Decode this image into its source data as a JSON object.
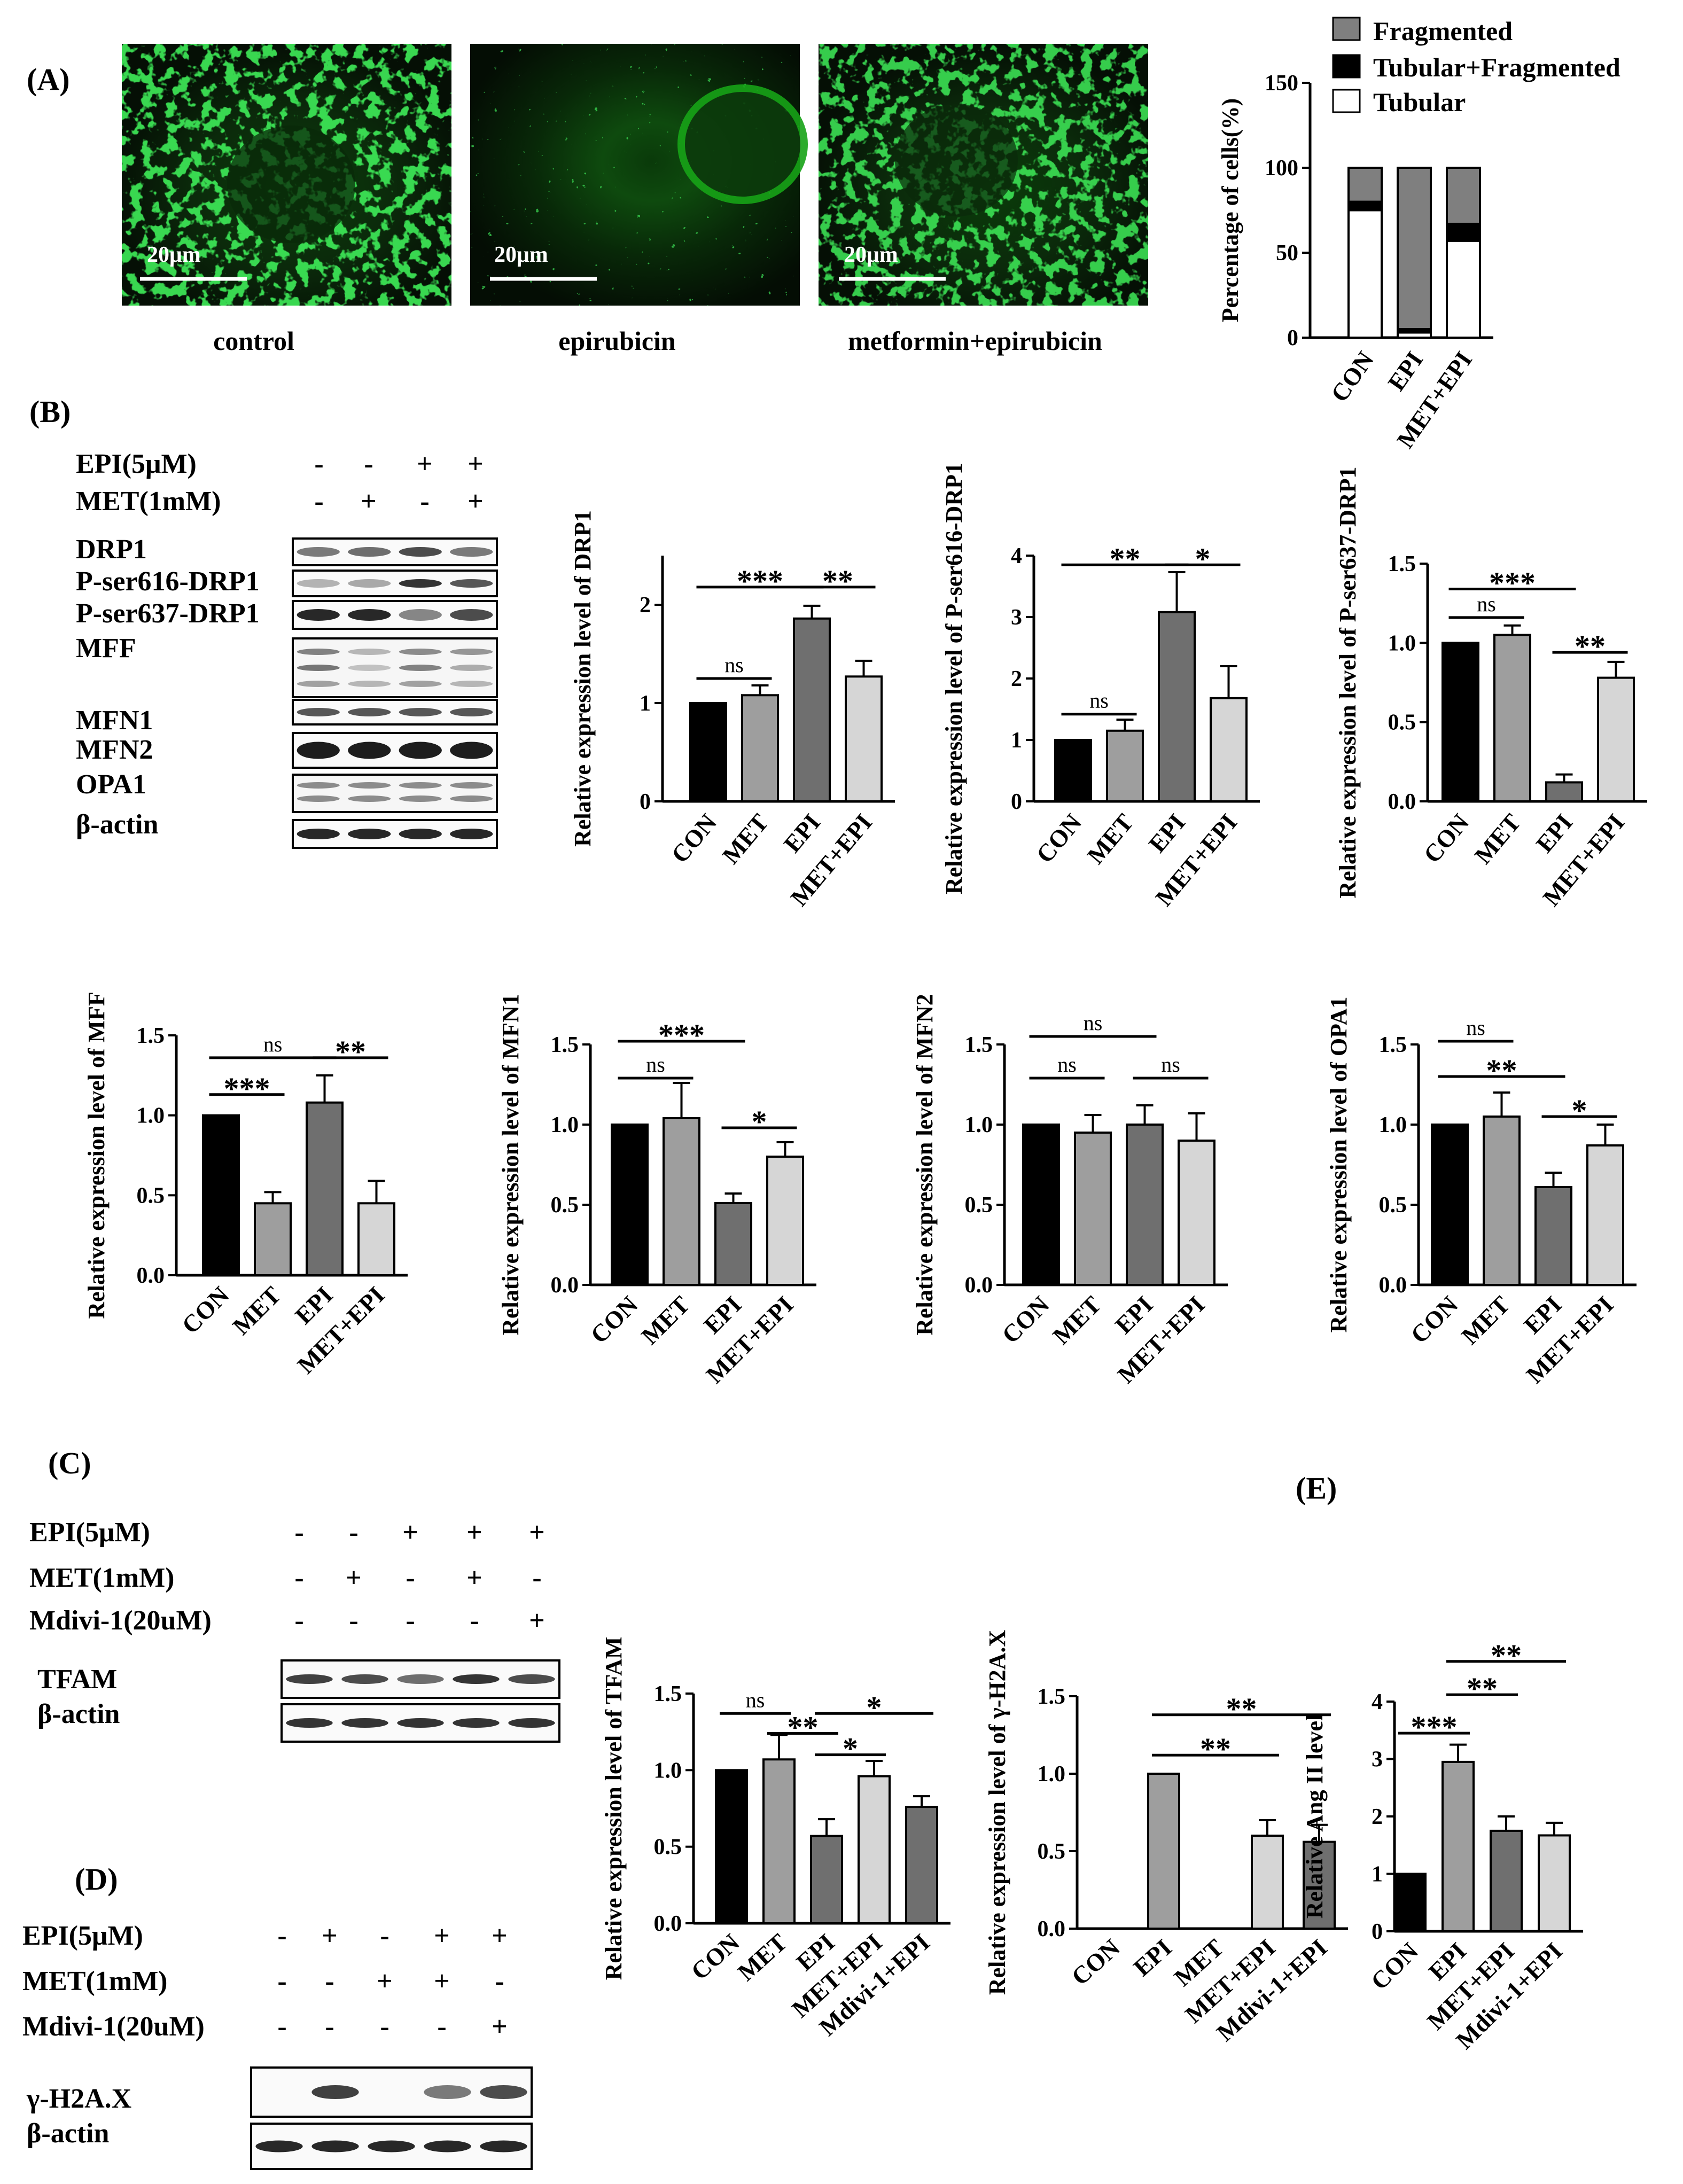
{
  "panels": {
    "A": "(A)",
    "B": "(B)",
    "C": "(C)",
    "D": "(D)",
    "E": "(E)"
  },
  "micrographs": {
    "scale_bar": "20μm",
    "captions": [
      "control",
      "epirubicin",
      "metformin+epirubicin"
    ]
  },
  "western_B": {
    "conditions": [
      {
        "label": "EPI(5μM)",
        "signs": [
          "-",
          "-",
          "+",
          "+"
        ]
      },
      {
        "label": "MET(1mM)",
        "signs": [
          "-",
          "+",
          "-",
          "+"
        ]
      }
    ],
    "proteins": [
      "DRP1",
      "P-ser616-DRP1",
      "P-ser637-DRP1",
      "MFF",
      "MFN1",
      "MFN2",
      "OPA1",
      "β-actin"
    ]
  },
  "western_C": {
    "conditions": [
      {
        "label": "EPI(5μM)",
        "signs": [
          "-",
          "-",
          "+",
          "+",
          "+"
        ]
      },
      {
        "label": "MET(1mM)",
        "signs": [
          "-",
          "+",
          "-",
          "+",
          "-"
        ]
      },
      {
        "label": "Mdivi-1(20uM)",
        "signs": [
          "-",
          "-",
          "-",
          "-",
          "+"
        ]
      }
    ],
    "proteins": [
      "TFAM",
      "β-actin"
    ]
  },
  "western_D": {
    "conditions": [
      {
        "label": "EPI(5μM)",
        "signs": [
          "-",
          "+",
          "-",
          "+",
          "+"
        ]
      },
      {
        "label": "MET(1mM)",
        "signs": [
          "-",
          "-",
          "+",
          "+",
          "-"
        ]
      },
      {
        "label": "Mdivi-1(20uM)",
        "signs": [
          "-",
          "-",
          "-",
          "-",
          "+"
        ]
      }
    ],
    "proteins": [
      "γ-H2A.X",
      "β-actin"
    ]
  },
  "chart_data": [
    {
      "id": "A_stack",
      "type": "bar",
      "stacked": true,
      "categories": [
        "CON",
        "EPI",
        "MET+EPI"
      ],
      "ylabel": "Percentage of cells(%)",
      "ylim": [
        0,
        150
      ],
      "yticks": [
        "0",
        "50",
        "100",
        "150"
      ],
      "series": [
        {
          "name": "Tubular",
          "color": "#ffffff",
          "values": [
            75,
            3,
            57
          ]
        },
        {
          "name": "Tubular+Fragmented",
          "color": "#000000",
          "values": [
            5,
            2,
            10
          ]
        },
        {
          "name": "Fragmented",
          "color": "#7f7f7f",
          "values": [
            20,
            95,
            33
          ]
        }
      ]
    },
    {
      "id": "B_drp1",
      "type": "bar",
      "categories": [
        "CON",
        "MET",
        "EPI",
        "MET+EPI"
      ],
      "values": [
        1.0,
        1.08,
        1.86,
        1.27
      ],
      "errors": [
        0,
        0.1,
        0.13,
        0.16
      ],
      "ylabel": "Relative expression level of DRP1",
      "ylim": [
        0,
        2.5
      ],
      "yticks": [
        "0",
        "1",
        "2"
      ],
      "colors": [
        "#000000",
        "#9e9e9e",
        "#6f6f6f",
        "#d6d6d6"
      ],
      "sig": [
        {
          "text": "ns",
          "from": 0,
          "to": 1,
          "level": 1.25
        },
        {
          "text": "***",
          "from": 0,
          "to": 2,
          "level": 2.18
        },
        {
          "text": "**",
          "from": 2,
          "to": 3,
          "level": 2.18
        }
      ]
    },
    {
      "id": "B_p616",
      "type": "bar",
      "categories": [
        "CON",
        "MET",
        "EPI",
        "MET+EPI"
      ],
      "values": [
        1.0,
        1.15,
        3.08,
        1.68
      ],
      "errors": [
        0,
        0.18,
        0.65,
        0.52
      ],
      "ylabel": "Relative expression level of P-ser616-DRP1",
      "ylim": [
        0,
        4
      ],
      "yticks": [
        "0",
        "1",
        "2",
        "3",
        "4"
      ],
      "colors": [
        "#000000",
        "#9e9e9e",
        "#6f6f6f",
        "#d6d6d6"
      ],
      "sig": [
        {
          "text": "ns",
          "from": 0,
          "to": 1,
          "level": 1.42
        },
        {
          "text": "**",
          "from": 0,
          "to": 2,
          "level": 3.85
        },
        {
          "text": "*",
          "from": 2,
          "to": 3,
          "level": 3.85
        }
      ]
    },
    {
      "id": "B_p637",
      "type": "bar",
      "categories": [
        "CON",
        "MET",
        "EPI",
        "MET+EPI"
      ],
      "values": [
        1.0,
        1.05,
        0.12,
        0.78
      ],
      "errors": [
        0,
        0.06,
        0.05,
        0.1
      ],
      "ylabel": "Relative expression level of P-ser637-DRP1",
      "ylim": [
        0,
        1.5
      ],
      "yticks": [
        "0.0",
        "0.5",
        "1.0",
        "1.5"
      ],
      "colors": [
        "#000000",
        "#9e9e9e",
        "#6f6f6f",
        "#d6d6d6"
      ],
      "sig": [
        {
          "text": "ns",
          "from": 0,
          "to": 1,
          "level": 1.16
        },
        {
          "text": "***",
          "from": 0,
          "to": 2,
          "level": 1.34
        },
        {
          "text": "**",
          "from": 2,
          "to": 3,
          "level": 0.94
        }
      ]
    },
    {
      "id": "B_mff",
      "type": "bar",
      "categories": [
        "CON",
        "MET",
        "EPI",
        "MET+EPI"
      ],
      "values": [
        1.0,
        0.45,
        1.08,
        0.45
      ],
      "errors": [
        0,
        0.07,
        0.17,
        0.14
      ],
      "ylabel": "Relative expression level of MFF",
      "ylim": [
        0,
        1.5
      ],
      "yticks": [
        "0.0",
        "0.5",
        "1.0",
        "1.5"
      ],
      "colors": [
        "#000000",
        "#9e9e9e",
        "#6f6f6f",
        "#d6d6d6"
      ],
      "sig": [
        {
          "text": "***",
          "from": 0,
          "to": 1,
          "level": 1.13
        },
        {
          "text": "ns",
          "from": 0,
          "to": 2,
          "level": 1.36
        },
        {
          "text": "**",
          "from": 2,
          "to": 3,
          "level": 1.36
        }
      ]
    },
    {
      "id": "B_mfn1",
      "type": "bar",
      "categories": [
        "CON",
        "MET",
        "EPI",
        "MET+EPI"
      ],
      "values": [
        1.0,
        1.04,
        0.51,
        0.8
      ],
      "errors": [
        0,
        0.22,
        0.06,
        0.09
      ],
      "ylabel": "Relative expression level of MFN1",
      "ylim": [
        0,
        1.5
      ],
      "yticks": [
        "0.0",
        "0.5",
        "1.0",
        "1.5"
      ],
      "colors": [
        "#000000",
        "#9e9e9e",
        "#6f6f6f",
        "#d6d6d6"
      ],
      "sig": [
        {
          "text": "ns",
          "from": 0,
          "to": 1,
          "level": 1.29
        },
        {
          "text": "***",
          "from": 0,
          "to": 2,
          "level": 1.52
        },
        {
          "text": "*",
          "from": 2,
          "to": 3,
          "level": 0.98
        }
      ]
    },
    {
      "id": "B_mfn2",
      "type": "bar",
      "categories": [
        "CON",
        "MET",
        "EPI",
        "MET+EPI"
      ],
      "values": [
        1.0,
        0.95,
        1.0,
        0.9
      ],
      "errors": [
        0,
        0.11,
        0.12,
        0.17
      ],
      "ylabel": "Relative expression level of MFN2",
      "ylim": [
        0,
        1.5
      ],
      "yticks": [
        "0.0",
        "0.5",
        "1.0",
        "1.5"
      ],
      "colors": [
        "#000000",
        "#9e9e9e",
        "#6f6f6f",
        "#d6d6d6"
      ],
      "sig": [
        {
          "text": "ns",
          "from": 0,
          "to": 1,
          "level": 1.29
        },
        {
          "text": "ns",
          "from": 0,
          "to": 2,
          "level": 1.55
        },
        {
          "text": "ns",
          "from": 2,
          "to": 3,
          "level": 1.29
        }
      ]
    },
    {
      "id": "B_opa1",
      "type": "bar",
      "categories": [
        "CON",
        "MET",
        "EPI",
        "MET+EPI"
      ],
      "values": [
        1.0,
        1.05,
        0.61,
        0.87
      ],
      "errors": [
        0,
        0.15,
        0.09,
        0.13
      ],
      "ylabel": "Relative expression level of OPA1",
      "ylim": [
        0,
        1.5
      ],
      "yticks": [
        "0.0",
        "0.5",
        "1.0",
        "1.5"
      ],
      "colors": [
        "#000000",
        "#9e9e9e",
        "#6f6f6f",
        "#d6d6d6"
      ],
      "sig": [
        {
          "text": "ns",
          "from": 0,
          "to": 1,
          "level": 1.52
        },
        {
          "text": "**",
          "from": 0,
          "to": 2,
          "level": 1.3
        },
        {
          "text": "*",
          "from": 2,
          "to": 3,
          "level": 1.05
        }
      ]
    },
    {
      "id": "C_tfam",
      "type": "bar",
      "categories": [
        "CON",
        "MET",
        "EPI",
        "MET+EPI",
        "Mdivi-1+EPI"
      ],
      "values": [
        1.0,
        1.07,
        0.57,
        0.96,
        0.76
      ],
      "errors": [
        0,
        0.16,
        0.11,
        0.1,
        0.07
      ],
      "ylabel": "Relative expression level of TFAM",
      "ylim": [
        0,
        1.5
      ],
      "yticks": [
        "0.0",
        "0.5",
        "1.0",
        "1.5"
      ],
      "colors": [
        "#000000",
        "#9e9e9e",
        "#6f6f6f",
        "#d6d6d6",
        "#6f6f6f"
      ],
      "sig": [
        {
          "text": "ns",
          "from": 0,
          "to": 1,
          "level": 1.37
        },
        {
          "text": "**",
          "from": 1,
          "to": 2,
          "level": 1.24
        },
        {
          "text": "*",
          "from": 2,
          "to": 3,
          "level": 1.1
        },
        {
          "text": "*",
          "from": 2,
          "to": 4,
          "level": 1.37
        }
      ]
    },
    {
      "id": "D_h2ax",
      "type": "bar",
      "categories": [
        "CON",
        "EPI",
        "MET",
        "MET+EPI",
        "Mdivi-1+EPI"
      ],
      "values": [
        0,
        1.0,
        0,
        0.6,
        0.56
      ],
      "errors": [
        0,
        0,
        0,
        0.1,
        0.11
      ],
      "ylabel": "Relative expression level of γ-H2A.X",
      "ylim": [
        0,
        1.5
      ],
      "yticks": [
        "0.0",
        "0.5",
        "1.0",
        "1.5"
      ],
      "colors": [
        "#000000",
        "#9e9e9e",
        "#6f6f6f",
        "#d6d6d6",
        "#6f6f6f"
      ],
      "sig": [
        {
          "text": "**",
          "from": 1,
          "to": 3,
          "level": 1.12
        },
        {
          "text": "**",
          "from": 1,
          "to": 4,
          "level": 1.38
        }
      ]
    },
    {
      "id": "E_angii",
      "type": "bar",
      "categories": [
        "CON",
        "EPI",
        "MET+EPI",
        "Mdivi-1+EPI"
      ],
      "values": [
        1.0,
        2.95,
        1.75,
        1.67
      ],
      "errors": [
        0,
        0.3,
        0.25,
        0.22
      ],
      "ylabel": "Relative Ang II level",
      "ylim": [
        0,
        4
      ],
      "yticks": [
        "0",
        "1",
        "2",
        "3",
        "4"
      ],
      "colors": [
        "#000000",
        "#9e9e9e",
        "#6f6f6f",
        "#d6d6d6"
      ],
      "sig": [
        {
          "text": "***",
          "from": 0,
          "to": 1,
          "level": 3.45
        },
        {
          "text": "**",
          "from": 1,
          "to": 2,
          "level": 4.12
        },
        {
          "text": "**",
          "from": 1,
          "to": 3,
          "level": 4.7
        }
      ]
    }
  ]
}
